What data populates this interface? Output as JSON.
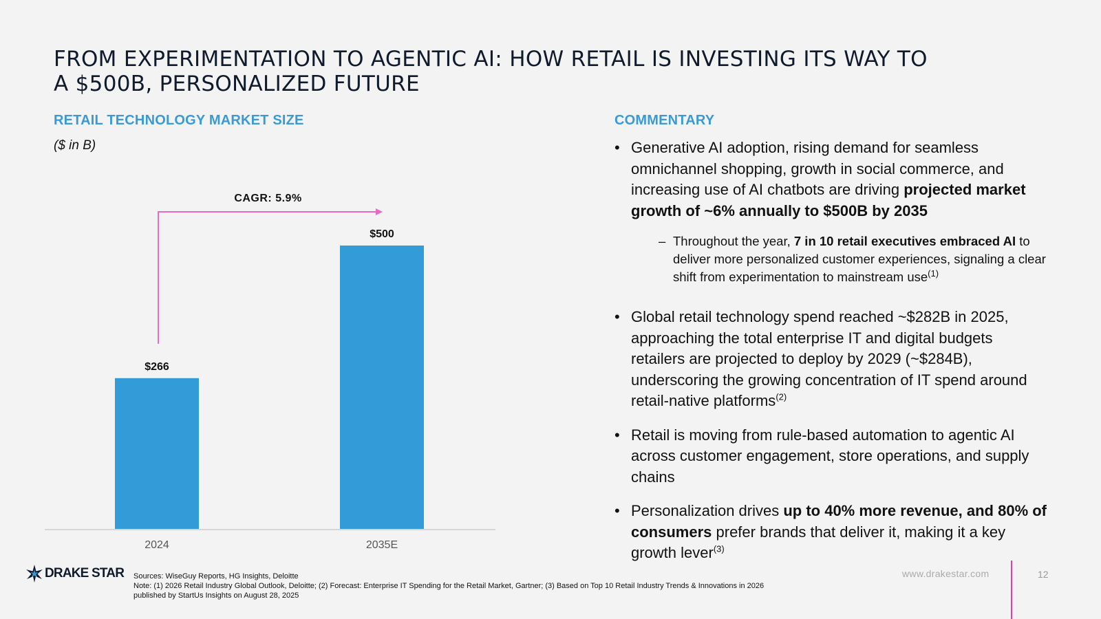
{
  "title": {
    "line1": "FROM EXPERIMENTATION TO AGENTIC AI: HOW RETAIL IS INVESTING ITS WAY TO",
    "line2": "A $500B, PERSONALIZED FUTURE"
  },
  "chart_section": {
    "heading": "RETAIL TECHNOLOGY MARKET SIZE",
    "unit": "($ in B)"
  },
  "chart_data": {
    "type": "bar",
    "title": "RETAIL TECHNOLOGY MARKET SIZE",
    "ylabel": "$ in B",
    "xlabel": "",
    "categories": [
      "2024",
      "2035E"
    ],
    "values": [
      266,
      500
    ],
    "data_labels": [
      "$266",
      "$500"
    ],
    "ylim": [
      0,
      500
    ],
    "annotation": "CAGR: 5.9%",
    "grid": false,
    "color": "#339bd8",
    "arrow_color": "#e86ac7"
  },
  "commentary": {
    "heading": "COMMENTARY",
    "b1": {
      "t1": "Generative AI adoption, rising demand for seamless omnichannel shopping, growth in social commerce, and increasing use of AI chatbots are driving ",
      "bold": "projected market growth of ~6% annually to $500B by 2035"
    },
    "sub1": {
      "dash": "–",
      "t1": "Throughout the year, ",
      "bold": "7 in 10 retail executives embraced AI",
      "t2": " to deliver more personalized customer experiences, signaling a clear shift from experimentation to mainstream use",
      "sup": "(1)"
    },
    "b2": {
      "t1": "Global retail technology spend reached ~$282B in 2025, approaching the total enterprise IT and digital budgets retailers are projected to deploy by 2029 (~$284B), underscoring the growing concentration of IT spend around retail-native platforms",
      "sup": "(2)"
    },
    "b3": {
      "t1": "Retail is moving from rule-based automation to agentic AI across customer engagement, store operations, and supply chains"
    },
    "b4": {
      "t1": "Personalization drives ",
      "bold1": "up to 40% more revenue, and 80% of consumers",
      "t2": " prefer brands that deliver it, making it a key growth lever",
      "sup": "(3)"
    }
  },
  "footer": {
    "logo": "DRAKE STAR",
    "sources": "Sources: WiseGuy Reports, HG Insights, Deloitte",
    "note1": "Note: (1) 2026 Retail Industry Global Outlook, Deloitte; (2) Forecast: Enterprise IT Spending for the Retail Market, Gartner; (3) Based on Top 10 Retail Industry Trends & Innovations in 2026",
    "note2": "published by StartUs Insights on August 28, 2025",
    "website": "www.drakestar.com",
    "page": "12",
    "accent": "#e040a0"
  }
}
